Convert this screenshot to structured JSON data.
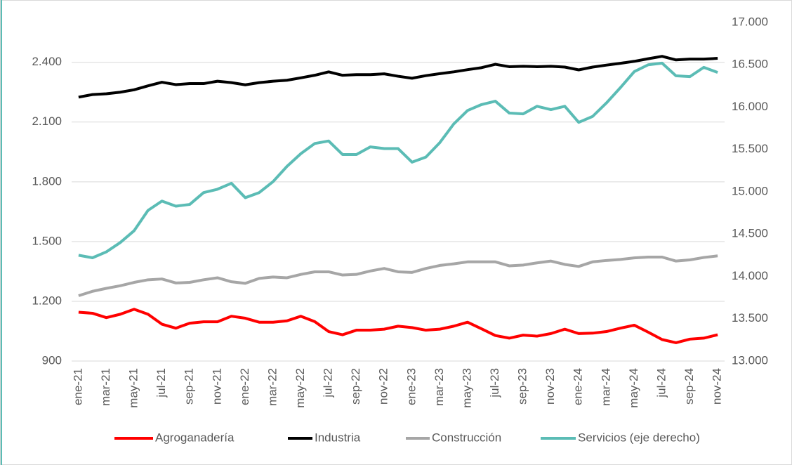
{
  "chart_data": {
    "type": "line",
    "categories": [
      "ene-21",
      null,
      "mar-21",
      null,
      "may-21",
      null,
      "jul-21",
      null,
      "sep-21",
      null,
      "nov-21",
      null,
      "ene-22",
      null,
      "mar-22",
      null,
      "may-22",
      null,
      "jul-22",
      null,
      "sep-22",
      null,
      "nov-22",
      null,
      "ene-23",
      null,
      "mar-23",
      null,
      "may-23",
      null,
      "jul-23",
      null,
      "sep-23",
      null,
      "nov-23",
      null,
      "ene-24",
      null,
      "mar-24",
      null,
      "may-24",
      null,
      "jul-24",
      null,
      "sep-24",
      null,
      "nov-24"
    ],
    "series": [
      {
        "name": "Agroganadería",
        "color": "#ff0000",
        "values": [
          1145,
          1140,
          1118,
          1135,
          1160,
          1135,
          1085,
          1065,
          1090,
          1097,
          1097,
          1125,
          1115,
          1095,
          1095,
          1102,
          1125,
          1098,
          1048,
          1032,
          1055,
          1055,
          1060,
          1075,
          1068,
          1055,
          1060,
          1075,
          1095,
          1062,
          1028,
          1015,
          1030,
          1025,
          1038,
          1060,
          1038,
          1040,
          1048,
          1065,
          1080,
          1045,
          1008,
          992,
          1010,
          1015,
          1032
        ]
      },
      {
        "name": "Industria",
        "color": "#000000",
        "values": [
          2225,
          2238,
          2242,
          2250,
          2262,
          2282,
          2300,
          2288,
          2293,
          2293,
          2305,
          2298,
          2287,
          2298,
          2305,
          2310,
          2322,
          2335,
          2352,
          2335,
          2338,
          2338,
          2342,
          2330,
          2320,
          2333,
          2343,
          2352,
          2363,
          2373,
          2390,
          2378,
          2380,
          2378,
          2380,
          2376,
          2362,
          2376,
          2386,
          2395,
          2405,
          2418,
          2430,
          2412,
          2416,
          2416,
          2420
        ]
      },
      {
        "name": "Construcción",
        "color": "#a6a6a6",
        "values": [
          1228,
          1250,
          1265,
          1278,
          1295,
          1308,
          1312,
          1292,
          1295,
          1308,
          1318,
          1298,
          1290,
          1315,
          1322,
          1318,
          1335,
          1348,
          1348,
          1332,
          1335,
          1352,
          1365,
          1348,
          1345,
          1365,
          1380,
          1388,
          1398,
          1398,
          1398,
          1378,
          1382,
          1393,
          1402,
          1385,
          1375,
          1398,
          1405,
          1410,
          1418,
          1422,
          1422,
          1402,
          1408,
          1420,
          1428
        ]
      },
      {
        "name": "Servicios (eje derecho)",
        "color": "#5bbcb5",
        "axis": "y2",
        "values": [
          14250,
          14220,
          14290,
          14400,
          14540,
          14780,
          14890,
          14830,
          14850,
          14990,
          15030,
          15100,
          14930,
          14990,
          15120,
          15300,
          15450,
          15570,
          15600,
          15440,
          15440,
          15530,
          15510,
          15510,
          15350,
          15410,
          15580,
          15800,
          15960,
          16030,
          16070,
          15930,
          15920,
          16010,
          15970,
          16010,
          15820,
          15890,
          16050,
          16230,
          16420,
          16500,
          16520,
          16370,
          16360,
          16470,
          16410
        ]
      }
    ],
    "ylim": [
      900,
      2600
    ],
    "yticks": [
      900,
      {
        "value": 1200,
        "label": "1.200"
      },
      {
        "value": 1500,
        "label": "1.500"
      },
      {
        "value": 1800,
        "label": "1.800"
      },
      {
        "value": 2100,
        "label": "2.100"
      },
      {
        "value": 2400,
        "label": "2.400"
      }
    ],
    "y2lim": [
      13000,
      17000
    ],
    "y2ticks": [
      {
        "value": 13000,
        "label": "13.000"
      },
      {
        "value": 13500,
        "label": "13.500"
      },
      {
        "value": 14000,
        "label": "14.000"
      },
      {
        "value": 14500,
        "label": "14.500"
      },
      {
        "value": 15000,
        "label": "15.000"
      },
      {
        "value": 15500,
        "label": "15.500"
      },
      {
        "value": 16000,
        "label": "16.000"
      },
      {
        "value": 16500,
        "label": "16.500"
      },
      {
        "value": 17000,
        "label": "17.000"
      }
    ],
    "grid": true,
    "legend": "bottom"
  }
}
